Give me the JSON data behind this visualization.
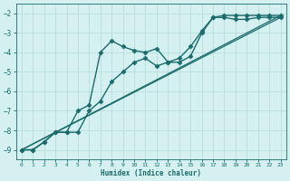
{
  "xlabel": "Humidex (Indice chaleur)",
  "ylabel": "",
  "bg_color": "#d4f0f0",
  "grid_color": "#b8dede",
  "line_color": "#1a6b6b",
  "xlim": [
    -0.5,
    23.5
  ],
  "ylim": [
    -9.5,
    -1.5
  ],
  "yticks": [
    -9,
    -8,
    -7,
    -6,
    -5,
    -4,
    -3,
    -2
  ],
  "xticks": [
    0,
    1,
    2,
    3,
    4,
    5,
    6,
    7,
    8,
    9,
    10,
    11,
    12,
    13,
    14,
    15,
    16,
    17,
    18,
    19,
    20,
    21,
    22,
    23
  ],
  "series": [
    {
      "x": [
        0,
        1,
        2,
        3,
        4,
        5,
        6,
        7,
        8,
        9,
        10,
        11,
        12,
        13,
        14,
        15,
        16,
        17,
        18,
        19,
        20,
        21,
        22,
        23
      ],
      "y": [
        -9.0,
        -9.0,
        -8.6,
        -8.1,
        -8.1,
        -7.0,
        -6.7,
        -4.0,
        -3.4,
        -3.7,
        -3.9,
        -4.0,
        -3.8,
        -4.5,
        -4.5,
        -4.2,
        -3.0,
        -2.2,
        -2.1,
        -2.1,
        -2.1,
        -2.1,
        -2.1,
        -2.1
      ],
      "marker": "D",
      "markersize": 2.5,
      "linewidth": 1.0
    },
    {
      "x": [
        0,
        1,
        2,
        3,
        4,
        5,
        6,
        7,
        8,
        9,
        10,
        11,
        12,
        13,
        14,
        15,
        16,
        17,
        18,
        19,
        20,
        21,
        22,
        23
      ],
      "y": [
        -9.0,
        -9.0,
        -8.6,
        -8.1,
        -8.1,
        -8.1,
        -7.0,
        -6.5,
        -5.5,
        -5.0,
        -4.5,
        -4.3,
        -4.7,
        -4.5,
        -4.3,
        -3.7,
        -2.9,
        -2.2,
        -2.2,
        -2.3,
        -2.3,
        -2.2,
        -2.2,
        -2.2
      ],
      "marker": "D",
      "markersize": 2.5,
      "linewidth": 1.0
    },
    {
      "x": [
        0,
        23
      ],
      "y": [
        -9.0,
        -2.1
      ],
      "marker": null,
      "markersize": 0,
      "linewidth": 0.9
    },
    {
      "x": [
        0,
        23
      ],
      "y": [
        -9.0,
        -2.2
      ],
      "marker": null,
      "markersize": 0,
      "linewidth": 0.9
    }
  ]
}
